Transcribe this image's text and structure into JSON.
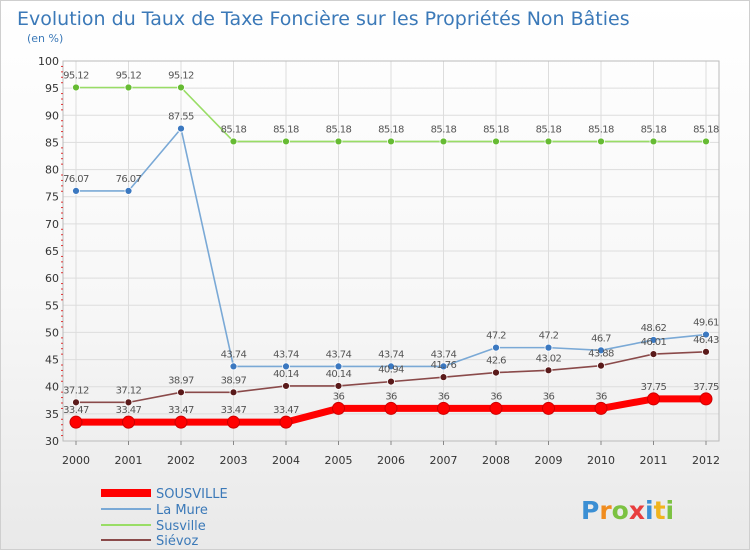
{
  "chart_data": {
    "type": "line",
    "title": "Evolution du Taux de Taxe Foncière sur les Propriétés Non Bâties",
    "subtitle": "(en %)",
    "categories": [
      "2000",
      "2001",
      "2002",
      "2003",
      "2004",
      "2005",
      "2006",
      "2007",
      "2008",
      "2009",
      "2010",
      "2011",
      "2012"
    ],
    "ylim": [
      30,
      100
    ],
    "yticks": [
      30,
      35,
      40,
      45,
      50,
      55,
      60,
      65,
      70,
      75,
      80,
      85,
      90,
      95,
      100
    ],
    "series": [
      {
        "name": "SOUSVILLE",
        "color": "#ff0000",
        "marker": "#ff0000",
        "values": [
          33.47,
          33.47,
          33.47,
          33.47,
          33.47,
          36,
          36,
          36,
          36,
          36,
          36,
          37.75,
          37.75
        ],
        "labels": [
          "33.47",
          "33.47",
          "33.47",
          "33.47",
          "33.47",
          "36",
          "36",
          "36",
          "36",
          "36",
          "36",
          "37.75",
          "37.75"
        ]
      },
      {
        "name": "La Mure",
        "color": "#7aa9d6",
        "marker": "#3b78c0",
        "values": [
          76.07,
          76.07,
          87.55,
          43.74,
          43.74,
          43.74,
          43.74,
          43.74,
          47.2,
          47.2,
          46.7,
          48.62,
          49.61
        ],
        "labels": [
          "76.07",
          "76.07",
          "87.55",
          "43.74",
          "43.74",
          "43.74",
          "43.74",
          "43.74",
          "47.2",
          "47.2",
          "46.7",
          "48.62",
          "49.61"
        ]
      },
      {
        "name": "Susville",
        "color": "#99dd66",
        "marker": "#66bb33",
        "values": [
          95.12,
          95.12,
          95.12,
          85.18,
          85.18,
          85.18,
          85.18,
          85.18,
          85.18,
          85.18,
          85.18,
          85.18,
          85.18
        ],
        "labels": [
          "95.12",
          "95.12",
          "95.12",
          "85.18",
          "85.18",
          "85.18",
          "85.18",
          "85.18",
          "85.18",
          "85.18",
          "85.18",
          "85.18",
          "85.18"
        ]
      },
      {
        "name": "Siévoz",
        "color": "#8a4a4a",
        "marker": "#5a1a1a",
        "values": [
          37.12,
          37.12,
          38.97,
          38.97,
          40.14,
          40.14,
          40.94,
          41.76,
          42.6,
          43.02,
          43.88,
          46.01,
          46.43
        ],
        "labels": [
          "37.12",
          "37.12",
          "38.97",
          "38.97",
          "40.14",
          "40.14",
          "40.94",
          "41.76",
          "42.6",
          "43.02",
          "43.88",
          "46.01",
          "46.43"
        ]
      }
    ],
    "legend": [
      "SOUSVILLE",
      "La Mure",
      "Susville",
      "Siévoz"
    ]
  },
  "brand": {
    "letters": [
      "P",
      "r",
      "o",
      "x",
      "i",
      "t",
      "i"
    ],
    "colors": [
      "#3b8fd4",
      "#f08c1e",
      "#7cc242",
      "#e83e3e",
      "#3b8fd4",
      "#f0b41e",
      "#7cc242"
    ]
  }
}
